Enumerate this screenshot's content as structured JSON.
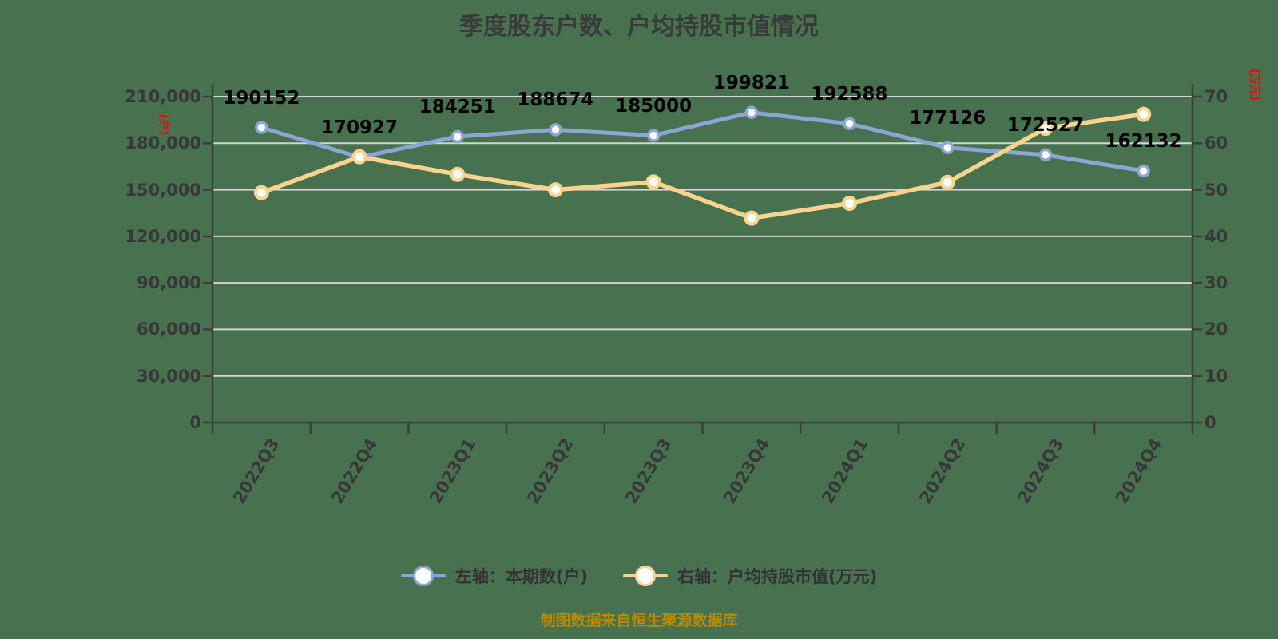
{
  "footer": "制图数据来自恒生聚源数据库",
  "colors": {
    "background": "#47714F",
    "title_text": "#3A3A3A",
    "axis_line": "#3E3E3E",
    "tick_label": "#383838",
    "grid_line": "#D4D4D4",
    "data_label": "#000000",
    "axis_unit": "#FF0000",
    "footer_text": "#BB8A00",
    "legend_text": "#333333"
  },
  "chart_data": {
    "type": "line",
    "title": "季度股东户数、户均持股市值情况",
    "categories": [
      "2022Q3",
      "2022Q4",
      "2023Q1",
      "2023Q2",
      "2023Q3",
      "2023Q4",
      "2024Q1",
      "2024Q2",
      "2024Q3",
      "2024Q4"
    ],
    "series": [
      {
        "name": "左轴：本期数(户)",
        "yaxis": "left",
        "color": "#8BA6D5",
        "marker": "circle",
        "values": [
          190152,
          170927,
          184251,
          188674,
          185000,
          199821,
          192588,
          177126,
          172527,
          162132
        ],
        "data_labels": [
          "190152",
          "170927",
          "184251",
          "188674",
          "185000",
          "199821",
          "192588",
          "177126",
          "172527",
          "162132"
        ]
      },
      {
        "name": "右轴：户均持股市值(万元)",
        "yaxis": "right",
        "color": "#FAD48C",
        "marker": "circle",
        "values": [
          49.4,
          57.1,
          53.3,
          50.0,
          51.7,
          43.9,
          47.1,
          51.6,
          63.2,
          66.2
        ],
        "data_labels": null
      }
    ],
    "left_axis": {
      "title": "(户)",
      "min": 0,
      "max": 210000,
      "tick_labels": [
        "0",
        "30,000",
        "60,000",
        "90,000",
        "120,000",
        "150,000",
        "180,000",
        "210,000"
      ]
    },
    "right_axis": {
      "title": "(万元)",
      "min": 0,
      "max": 70,
      "tick_labels": [
        "0",
        "10",
        "20",
        "30",
        "40",
        "50",
        "60",
        "70"
      ]
    },
    "grid": true,
    "legend_position": "bottom"
  }
}
